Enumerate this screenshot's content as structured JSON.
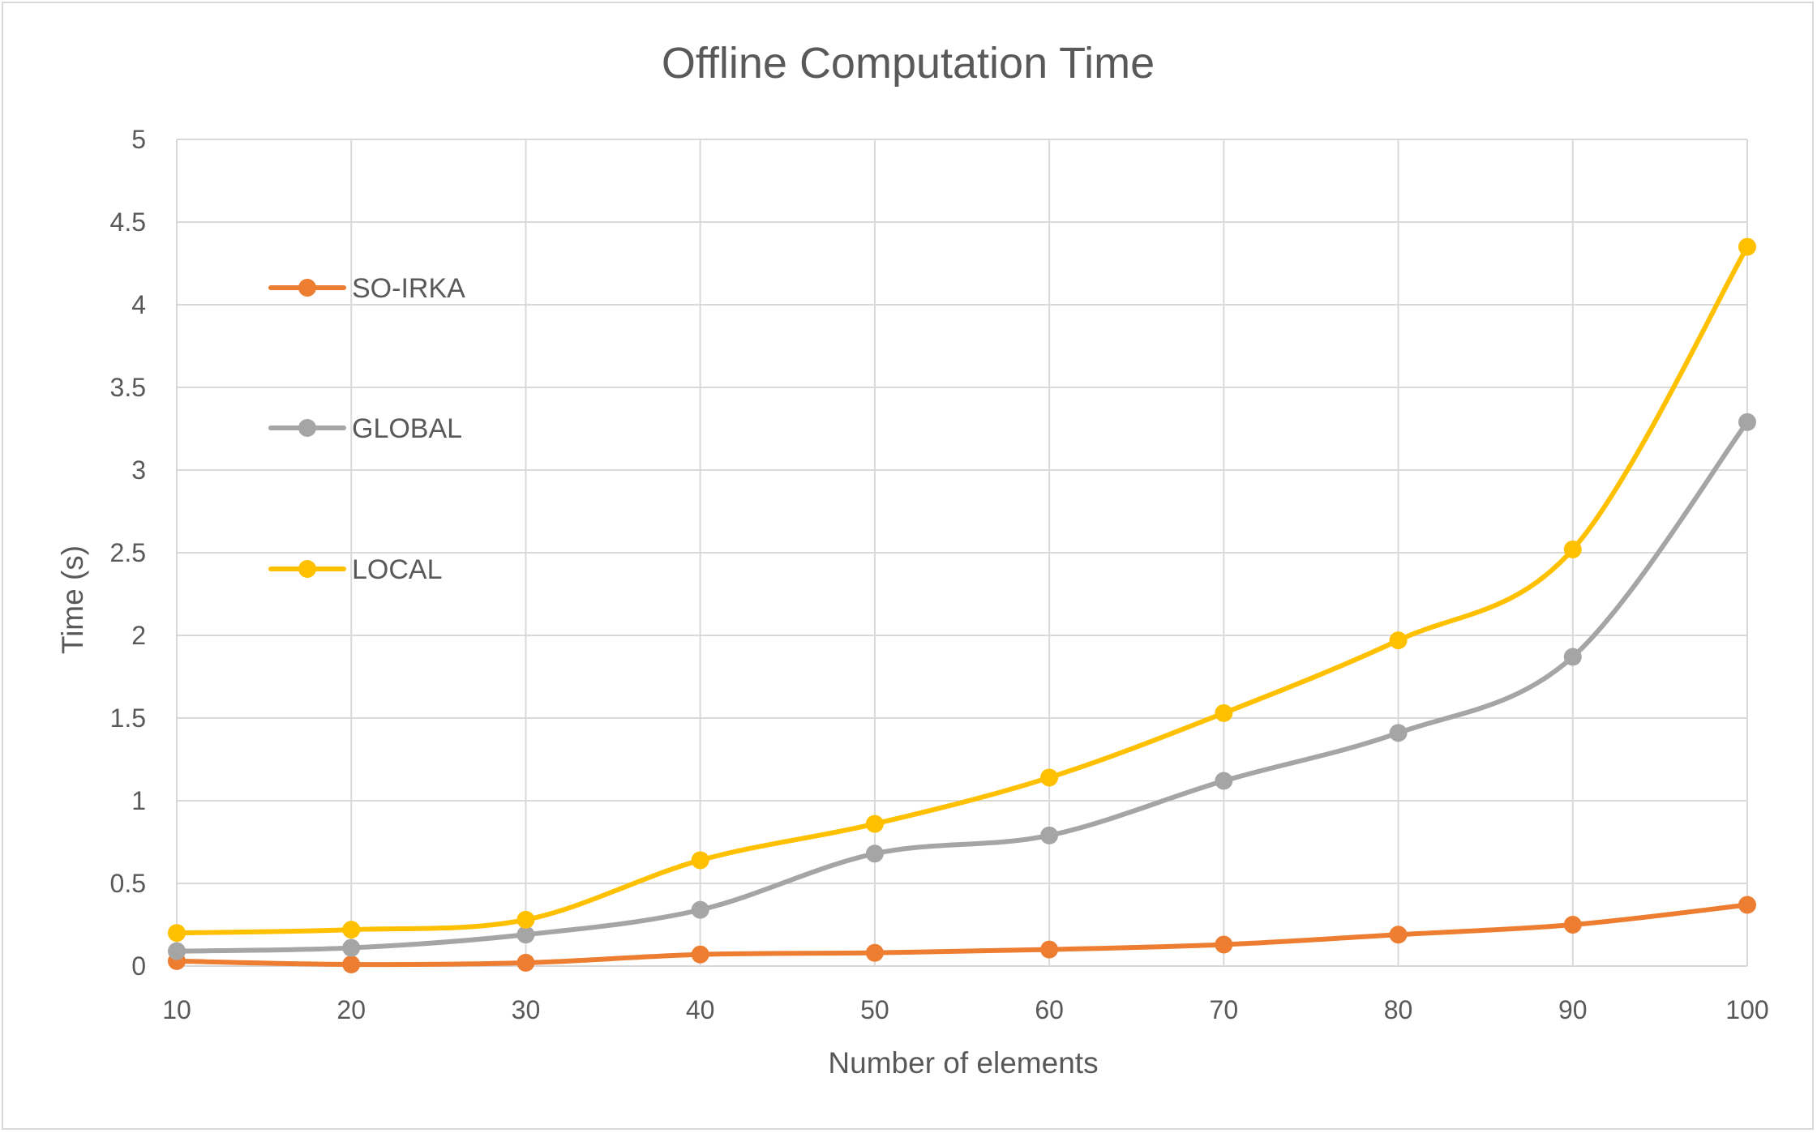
{
  "chart_data": {
    "type": "line",
    "title": "Offline Computation Time",
    "xlabel": "Number of elements",
    "ylabel": "Time (s)",
    "categories": [
      10,
      20,
      30,
      40,
      50,
      60,
      70,
      80,
      90,
      100
    ],
    "x_tick_labels": [
      "10",
      "20",
      "30",
      "40",
      "50",
      "60",
      "70",
      "80",
      "90",
      "100"
    ],
    "y_tick_labels": [
      "0",
      "0.5",
      "1",
      "1.5",
      "2",
      "2.5",
      "3",
      "3.5",
      "4",
      "4.5",
      "5"
    ],
    "ylim": [
      0,
      5
    ],
    "grid": true,
    "smooth": true,
    "legend_position": "left, inside plot",
    "series": [
      {
        "name": "SO-IRKA",
        "color": "#ED7D31",
        "values": [
          0.03,
          0.01,
          0.02,
          0.07,
          0.08,
          0.1,
          0.13,
          0.19,
          0.25,
          0.37
        ]
      },
      {
        "name": "GLOBAL",
        "color": "#A5A5A5",
        "values": [
          0.09,
          0.11,
          0.19,
          0.34,
          0.68,
          0.79,
          1.12,
          1.41,
          1.87,
          3.29
        ]
      },
      {
        "name": "LOCAL",
        "color": "#FFC000",
        "values": [
          0.2,
          0.22,
          0.28,
          0.64,
          0.86,
          1.14,
          1.53,
          1.97,
          2.52,
          4.35
        ]
      }
    ]
  }
}
